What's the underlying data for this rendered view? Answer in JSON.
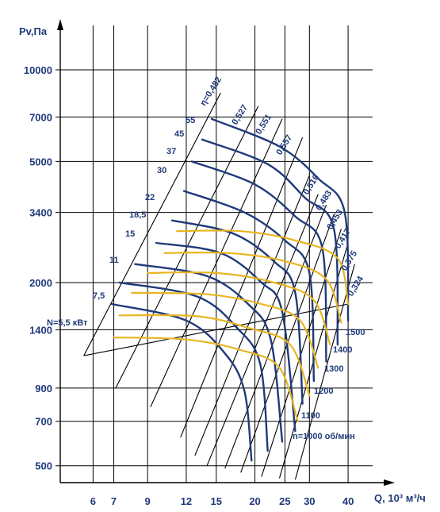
{
  "chart_data": {
    "type": "line",
    "title": "",
    "xlabel": "Q, 10³ м³/ч",
    "ylabel": "Pv,Па",
    "x_scale": "log",
    "y_scale": "log",
    "xlim": [
      4.7,
      48
    ],
    "ylim": [
      440,
      14000
    ],
    "x_ticks": [
      6,
      7,
      9,
      12,
      15,
      20,
      25,
      30,
      40
    ],
    "y_ticks": [
      500,
      700,
      900,
      1400,
      2000,
      3400,
      5000,
      7000,
      10000
    ],
    "grid": true,
    "colors": {
      "speed_curves": "#1f3a7a",
      "power_curves": "#e8b520",
      "efficiency_rays": "#000000",
      "text": "#1f3a7a"
    },
    "efficiency_rays": [
      {
        "label": "η=0,482",
        "start": [
          5.6,
          1150
        ],
        "end": [
          15.5,
          8400
        ]
      },
      {
        "label": "0,527",
        "start": [
          7.1,
          900
        ],
        "end": [
          20.5,
          7600
        ]
      },
      {
        "label": "0,551",
        "start": [
          9.2,
          780
        ],
        "end": [
          24.5,
          6900
        ]
      },
      {
        "label": "0,557",
        "start": [
          11.5,
          620
        ],
        "end": [
          28.5,
          6000
        ]
      },
      {
        "label": "",
        "start": [
          12.8,
          540
        ],
        "end": [
          30,
          4500
        ]
      },
      {
        "label": "0,516",
        "start": [
          14,
          500
        ],
        "end": [
          32,
          3900
        ]
      },
      {
        "label": "0,483",
        "start": [
          16,
          490
        ],
        "end": [
          34,
          3600
        ]
      },
      {
        "label": "0,453",
        "start": [
          18,
          475
        ],
        "end": [
          36,
          3350
        ]
      },
      {
        "label": "0,417",
        "start": [
          21,
          460
        ],
        "end": [
          38,
          3000
        ]
      },
      {
        "label": "0,375",
        "start": [
          24,
          455
        ],
        "end": [
          40,
          2700
        ]
      },
      {
        "label": "0,324",
        "start": [
          27,
          450
        ],
        "end": [
          42,
          2300
        ]
      }
    ],
    "boundary_line": {
      "start": [
        5.6,
        1150
      ],
      "end": [
        40,
        1700
      ]
    },
    "speed_series": [
      {
        "name": "n=1000 об/мин",
        "points": [
          [
            6.9,
            1700
          ],
          [
            12,
            1500
          ],
          [
            16,
            1170
          ],
          [
            18.5,
            880
          ],
          [
            19.5,
            520
          ]
        ]
      },
      {
        "name": "1100",
        "points": [
          [
            7.3,
            2000
          ],
          [
            13,
            1800
          ],
          [
            17.5,
            1420
          ],
          [
            20.8,
            1080
          ],
          [
            22,
            560
          ]
        ]
      },
      {
        "name": "1200",
        "points": [
          [
            8.2,
            2300
          ],
          [
            14,
            2100
          ],
          [
            19,
            1700
          ],
          [
            22.5,
            1300
          ],
          [
            24.5,
            600
          ]
        ]
      },
      {
        "name": "1300",
        "points": [
          [
            9.6,
            2700
          ],
          [
            15.5,
            2500
          ],
          [
            21,
            2000
          ],
          [
            24.5,
            1600
          ],
          [
            27,
            650
          ]
        ]
      },
      {
        "name": "1400",
        "points": [
          [
            10.8,
            3200
          ],
          [
            17,
            2900
          ],
          [
            23,
            2350
          ],
          [
            27,
            1850
          ],
          [
            28.5,
            800
          ]
        ]
      },
      {
        "name": "1500",
        "points": [
          [
            11.8,
            4000
          ],
          [
            18.5,
            3400
          ],
          [
            25,
            2750
          ],
          [
            30,
            2150
          ],
          [
            31,
            950
          ]
        ]
      },
      {
        "name": "",
        "points": [
          [
            12.5,
            5000
          ],
          [
            20,
            4200
          ],
          [
            27,
            3300
          ],
          [
            33,
            2600
          ],
          [
            34,
            1100
          ]
        ]
      },
      {
        "name": "",
        "points": [
          [
            13.5,
            5900
          ],
          [
            22,
            4900
          ],
          [
            29,
            3800
          ],
          [
            36,
            3000
          ],
          [
            37,
            1250
          ]
        ]
      },
      {
        "name": "",
        "points": [
          [
            14.5,
            6900
          ],
          [
            24,
            5600
          ],
          [
            32,
            4400
          ],
          [
            39,
            3400
          ],
          [
            40,
            1500
          ]
        ]
      }
    ],
    "speed_labels": [
      "n=1000 об/мин",
      "1100",
      "1200",
      "1300",
      "1400",
      "1500"
    ],
    "power_series": [
      {
        "name": "N=5,5 кВт",
        "points": [
          [
            7.0,
            1320
          ],
          [
            12,
            1300
          ],
          [
            18,
            1200
          ],
          [
            24,
            1050
          ],
          [
            27.5,
            700
          ]
        ]
      },
      {
        "name": "7,5",
        "points": [
          [
            7.3,
            1560
          ],
          [
            13,
            1550
          ],
          [
            19,
            1420
          ],
          [
            26,
            1250
          ],
          [
            30,
            850
          ]
        ]
      },
      {
        "name": "",
        "points": [
          [
            8.0,
            1850
          ],
          [
            14,
            1830
          ],
          [
            21,
            1700
          ],
          [
            28,
            1500
          ],
          [
            32,
            1050
          ]
        ]
      },
      {
        "name": "11",
        "points": [
          [
            9.0,
            2150
          ],
          [
            15,
            2150
          ],
          [
            23,
            2000
          ],
          [
            31,
            1750
          ],
          [
            35,
            1250
          ]
        ]
      },
      {
        "name": "15",
        "points": [
          [
            10.2,
            2500
          ],
          [
            16.5,
            2500
          ],
          [
            25,
            2350
          ],
          [
            34,
            2050
          ],
          [
            38,
            1480
          ]
        ]
      },
      {
        "name": "18,5",
        "points": [
          [
            11.2,
            2950
          ],
          [
            18,
            2950
          ],
          [
            27,
            2750
          ],
          [
            37,
            2400
          ],
          [
            40,
            1700
          ]
        ]
      }
    ],
    "power_labels": [
      "N=5,5 кВт",
      "7,5",
      "11",
      "15",
      "18,5",
      "22",
      "30",
      "37",
      "45",
      "55"
    ]
  }
}
